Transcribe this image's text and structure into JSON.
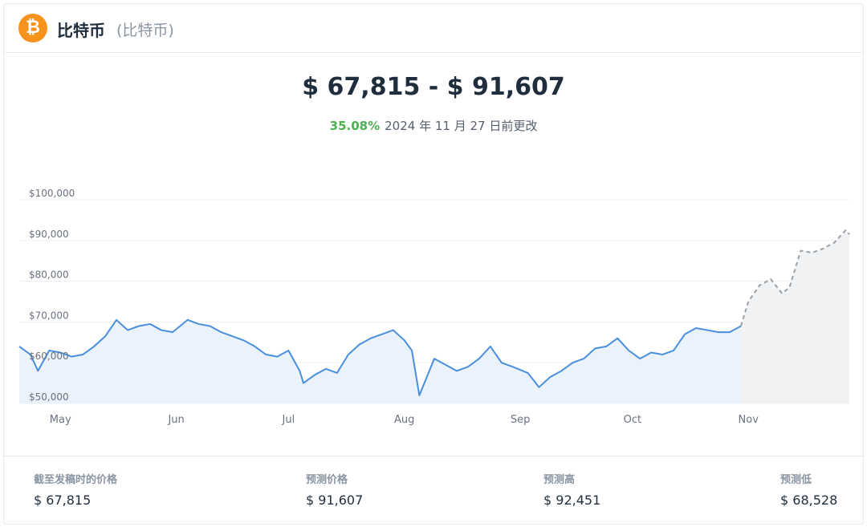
{
  "header": {
    "icon": "bitcoin-icon",
    "icon_glyph": "₿",
    "name": "比特币",
    "subtitle": "(比特币)"
  },
  "forecast": {
    "range": "$ 67,815 - $ 91,607",
    "change_pct": "35.08%",
    "change_text": "2024 年 11 月 27 日前更改"
  },
  "colors": {
    "actual_line": "#4a8fdd",
    "actual_fill": "#eaf2fc",
    "forecast_line": "#9aa0a6",
    "forecast_fill": "#f1f2f3",
    "positive": "#4cb050",
    "brand": "#f7931a"
  },
  "chart_data": {
    "type": "line",
    "x_axis": {
      "ticks": [
        "May",
        "Jun",
        "Jul",
        "Aug",
        "Sep",
        "Oct",
        "Nov"
      ],
      "range": [
        "2024-04-20",
        "2024-11-28"
      ]
    },
    "y_axis": {
      "ticks": [
        "$50,000",
        "$60,000",
        "$70,000",
        "$80,000",
        "$90,000",
        "$100,000"
      ],
      "range": [
        50000,
        100000
      ]
    },
    "grid": true,
    "series": [
      {
        "style": "solid",
        "points": [
          [
            "2024-04-20",
            64000
          ],
          [
            "2024-04-23",
            62000
          ],
          [
            "2024-04-25",
            58000
          ],
          [
            "2024-04-28",
            63000
          ],
          [
            "2024-05-01",
            62500
          ],
          [
            "2024-05-04",
            61500
          ],
          [
            "2024-05-07",
            62000
          ],
          [
            "2024-05-10",
            64000
          ],
          [
            "2024-05-13",
            66500
          ],
          [
            "2024-05-16",
            70500
          ],
          [
            "2024-05-19",
            68000
          ],
          [
            "2024-05-22",
            69000
          ],
          [
            "2024-05-25",
            69500
          ],
          [
            "2024-05-28",
            68000
          ],
          [
            "2024-05-31",
            67500
          ],
          [
            "2024-06-04",
            70500
          ],
          [
            "2024-06-07",
            69500
          ],
          [
            "2024-06-10",
            69000
          ],
          [
            "2024-06-13",
            67500
          ],
          [
            "2024-06-16",
            66500
          ],
          [
            "2024-06-19",
            65500
          ],
          [
            "2024-06-22",
            64000
          ],
          [
            "2024-06-25",
            62000
          ],
          [
            "2024-06-28",
            61500
          ],
          [
            "2024-07-01",
            63000
          ],
          [
            "2024-07-04",
            58000
          ],
          [
            "2024-07-05",
            55000
          ],
          [
            "2024-07-08",
            57000
          ],
          [
            "2024-07-11",
            58500
          ],
          [
            "2024-07-14",
            57500
          ],
          [
            "2024-07-17",
            62000
          ],
          [
            "2024-07-20",
            64500
          ],
          [
            "2024-07-23",
            66000
          ],
          [
            "2024-07-26",
            67000
          ],
          [
            "2024-07-29",
            68000
          ],
          [
            "2024-08-01",
            65500
          ],
          [
            "2024-08-03",
            63000
          ],
          [
            "2024-08-05",
            52000
          ],
          [
            "2024-08-07",
            56500
          ],
          [
            "2024-08-09",
            61000
          ],
          [
            "2024-08-12",
            59500
          ],
          [
            "2024-08-15",
            58000
          ],
          [
            "2024-08-18",
            59000
          ],
          [
            "2024-08-21",
            61000
          ],
          [
            "2024-08-24",
            64000
          ],
          [
            "2024-08-27",
            60000
          ],
          [
            "2024-08-30",
            59000
          ],
          [
            "2024-09-03",
            57500
          ],
          [
            "2024-09-06",
            54000
          ],
          [
            "2024-09-09",
            56500
          ],
          [
            "2024-09-12",
            58000
          ],
          [
            "2024-09-15",
            60000
          ],
          [
            "2024-09-18",
            61000
          ],
          [
            "2024-09-21",
            63500
          ],
          [
            "2024-09-24",
            64000
          ],
          [
            "2024-09-27",
            66000
          ],
          [
            "2024-09-30",
            63000
          ],
          [
            "2024-10-03",
            61000
          ],
          [
            "2024-10-06",
            62500
          ],
          [
            "2024-10-09",
            62000
          ],
          [
            "2024-10-12",
            63000
          ],
          [
            "2024-10-15",
            67000
          ],
          [
            "2024-10-18",
            68500
          ],
          [
            "2024-10-21",
            68000
          ],
          [
            "2024-10-24",
            67500
          ],
          [
            "2024-10-27",
            67500
          ],
          [
            "2024-10-30",
            69000
          ]
        ]
      },
      {
        "style": "dashed",
        "points": [
          [
            "2024-10-30",
            69000
          ],
          [
            "2024-11-01",
            75000
          ],
          [
            "2024-11-04",
            79000
          ],
          [
            "2024-11-07",
            80500
          ],
          [
            "2024-11-10",
            77000
          ],
          [
            "2024-11-12",
            78500
          ],
          [
            "2024-11-15",
            87500
          ],
          [
            "2024-11-18",
            87000
          ],
          [
            "2024-11-21",
            88000
          ],
          [
            "2024-11-24",
            89500
          ],
          [
            "2024-11-27",
            92500
          ],
          [
            "2024-11-28",
            91500
          ]
        ]
      }
    ]
  },
  "stats": [
    {
      "label": "截至发稿时的价格",
      "value": "$ 67,815"
    },
    {
      "label": "预测价格",
      "value": "$ 91,607"
    },
    {
      "label": "预测高",
      "value": "$ 92,451"
    },
    {
      "label": "预测低",
      "value": "$ 68,528"
    }
  ]
}
